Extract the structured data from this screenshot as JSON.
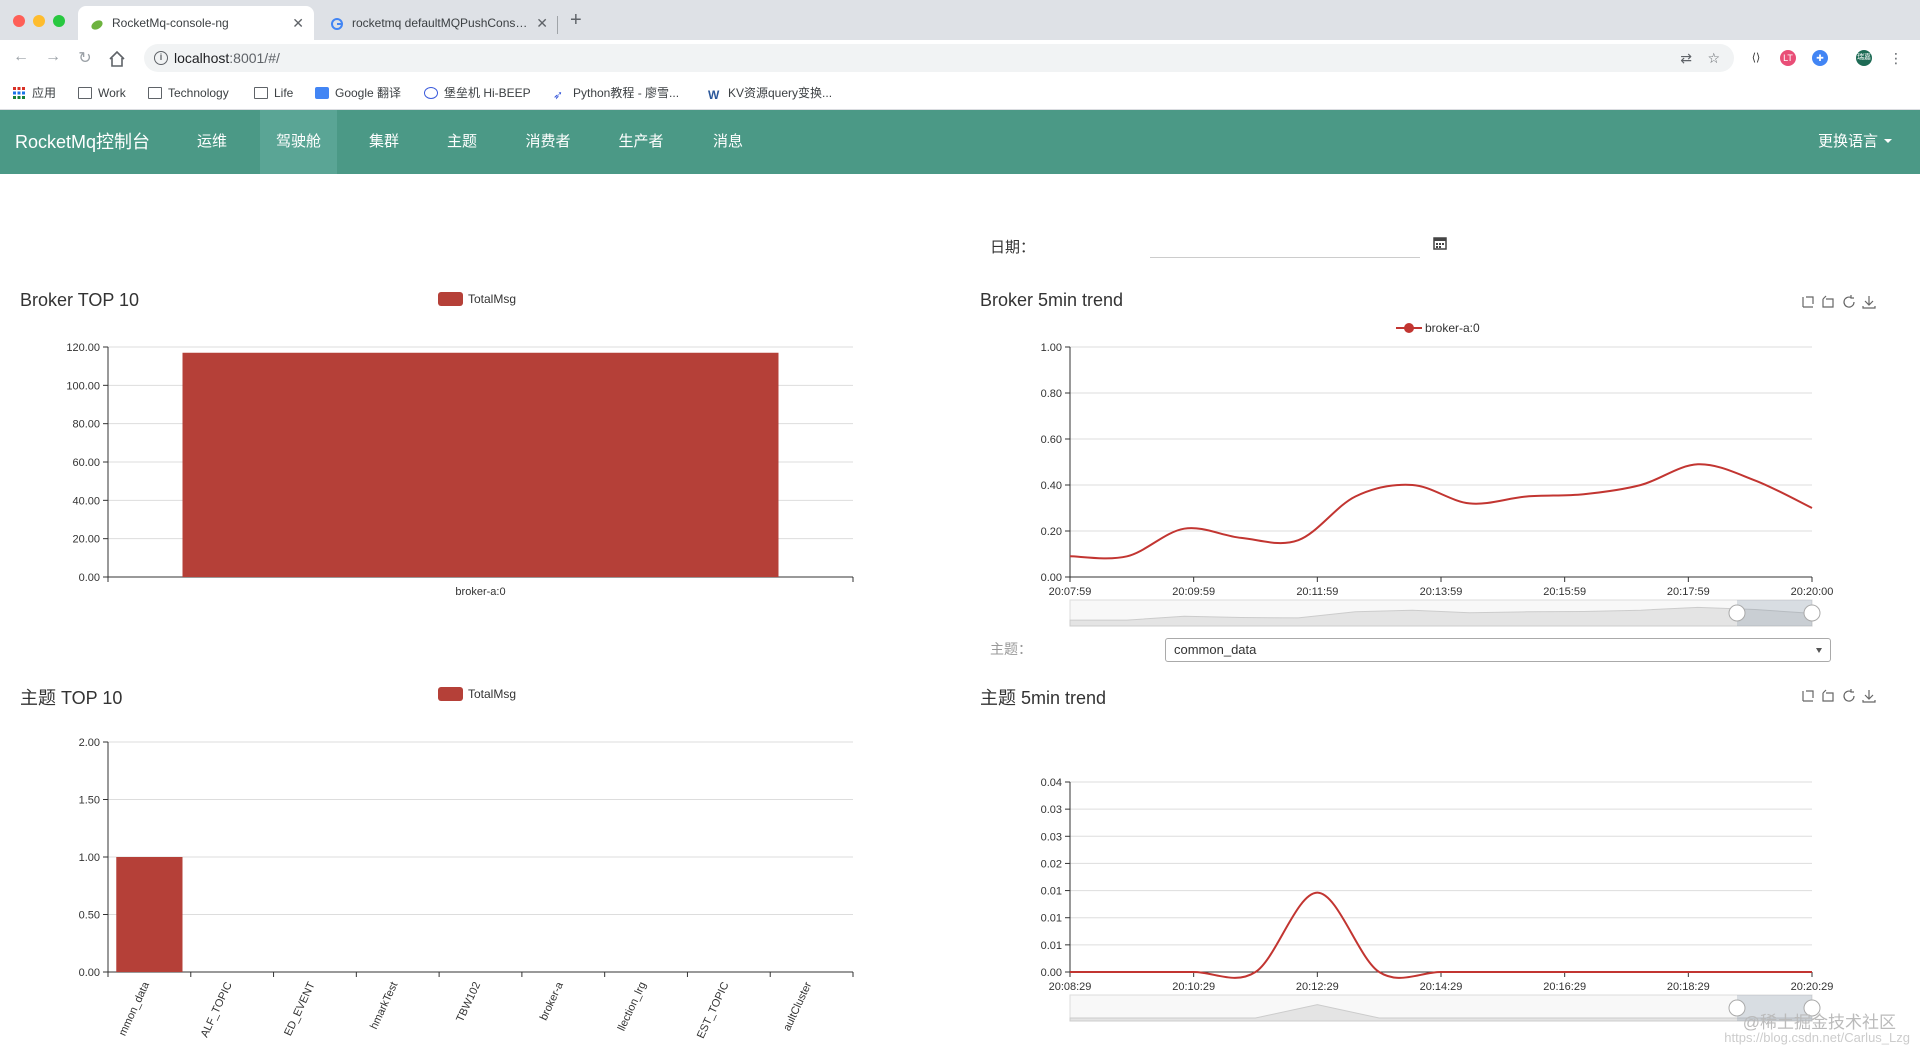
{
  "browser": {
    "tabs": [
      {
        "title": "RocketMq-console-ng",
        "active": true
      },
      {
        "title": "rocketmq defaultMQPushConsumer",
        "active": false
      }
    ],
    "url_host": "localhost",
    "url_path": ":8001/#/",
    "bookmarks": [
      {
        "label": "应用",
        "icon": "apps-icon"
      },
      {
        "label": "Work",
        "icon": "folder-icon"
      },
      {
        "label": "Technology",
        "icon": "folder-icon"
      },
      {
        "label": "Life",
        "icon": "folder-icon"
      },
      {
        "label": "Google 翻译",
        "icon": "translate-icon"
      },
      {
        "label": "堡垒机 Hi-BEEP",
        "icon": "lock-icon"
      },
      {
        "label": "Python教程 - 廖雪...",
        "icon": "rocket-icon"
      },
      {
        "label": "KV资源query变换...",
        "icon": "w-icon"
      }
    ],
    "extension_badge": "瑞嘉"
  },
  "navbar": {
    "brand": "RocketMq控制台",
    "items": [
      "运维",
      "驾驶舱",
      "集群",
      "主题",
      "消费者",
      "生产者",
      "消息"
    ],
    "active_index": 1,
    "language": "更换语言",
    "color": "#4b9986"
  },
  "date": {
    "label": "日期：",
    "value": ""
  },
  "topic_selector": {
    "label": "主题：",
    "selected": "common_data"
  },
  "panels": {
    "broker_top": {
      "title": "Broker TOP 10",
      "legend": "TotalMsg"
    },
    "broker_trend": {
      "title": "Broker 5min trend",
      "legend": "broker-a:0"
    },
    "topic_top": {
      "title": "主题 TOP 10",
      "legend": "TotalMsg"
    },
    "topic_trend": {
      "title": "主题 5min trend"
    }
  },
  "watermark": "@稀土掘金技术社区",
  "watermark_url": "https://blog.csdn.net/Carlus_Lzg",
  "colors": {
    "series": "#b54038",
    "line": "#c23531",
    "grid": "#ddd"
  },
  "chart_data": [
    {
      "type": "bar",
      "title": "Broker TOP 10",
      "categories": [
        "broker-a:0"
      ],
      "series": [
        {
          "name": "TotalMsg",
          "values": [
            117
          ]
        }
      ],
      "ylim": [
        0,
        120
      ],
      "yticks": [
        "0.00",
        "20.00",
        "40.00",
        "60.00",
        "80.00",
        "100.00",
        "120.00"
      ]
    },
    {
      "type": "line",
      "title": "Broker 5min trend",
      "x": [
        "20:07:59",
        "20:08:59",
        "20:09:59",
        "20:10:59",
        "20:11:59",
        "20:12:59",
        "20:13:59",
        "20:14:59",
        "20:15:59",
        "20:16:59",
        "20:17:59",
        "20:18:59",
        "20:20:00",
        "20:20:59"
      ],
      "xticks": [
        "20:07:59",
        "20:09:59",
        "20:11:59",
        "20:13:59",
        "20:15:59",
        "20:17:59",
        "20:20:00"
      ],
      "series": [
        {
          "name": "broker-a:0",
          "values": [
            0.09,
            0.09,
            0.21,
            0.17,
            0.16,
            0.35,
            0.4,
            0.32,
            0.35,
            0.36,
            0.4,
            0.49,
            0.42,
            0.3
          ]
        }
      ],
      "ylim": [
        0,
        1
      ],
      "yticks": [
        "0.00",
        "0.20",
        "0.40",
        "0.60",
        "0.80",
        "1.00"
      ]
    },
    {
      "type": "bar",
      "title": "主题 TOP 10",
      "categories": [
        "common_data",
        "%HALF_TOPIC",
        "LOGGED_EVENT",
        "BenchmarkTest",
        "TBW102",
        "broker-a",
        "collection_lrg",
        "TEST_TOPIC",
        "DefaultCluster"
      ],
      "category_labels": [
        "mmon_data",
        "ALF_TOPIC",
        "ED_EVENT",
        "hmarkTest",
        "TBW102",
        "broker-a",
        "llection_lrg",
        "EST_TOPIC",
        "aultCluster"
      ],
      "series": [
        {
          "name": "TotalMsg",
          "values": [
            1,
            0,
            0,
            0,
            0,
            0,
            0,
            0,
            0
          ]
        }
      ],
      "ylim": [
        0,
        2
      ],
      "yticks": [
        "0.00",
        "0.50",
        "1.00",
        "1.50",
        "2.00"
      ]
    },
    {
      "type": "line",
      "title": "主题 5min trend",
      "x": [
        "20:08:29",
        "20:09:29",
        "20:10:29",
        "20:11:29",
        "20:12:29",
        "20:13:29",
        "20:14:29",
        "20:15:29",
        "20:16:29",
        "20:17:29",
        "20:18:29",
        "20:19:29",
        "20:20:29"
      ],
      "xticks": [
        "20:08:29",
        "20:10:29",
        "20:12:29",
        "20:14:29",
        "20:16:29",
        "20:18:29",
        "20:20:29"
      ],
      "series": [
        {
          "name": "common_data",
          "values": [
            0,
            0,
            0,
            0,
            0.0167,
            0,
            0,
            0,
            0,
            0,
            0,
            0,
            0
          ]
        }
      ],
      "ylim": [
        0,
        0.04
      ],
      "yticks": [
        "0.00",
        "0.01",
        "0.01",
        "0.01",
        "0.02",
        "0.03",
        "0.03",
        "0.04"
      ]
    }
  ]
}
